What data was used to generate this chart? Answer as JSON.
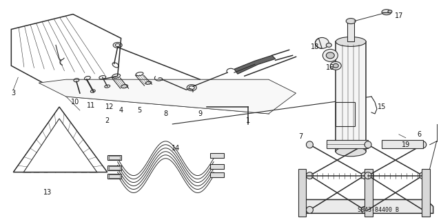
{
  "bg_color": "#ffffff",
  "part_number": "S843-84400 B",
  "figure_size": [
    6.4,
    3.19
  ],
  "dpi": 100,
  "line_color": "#2a2a2a",
  "text_color": "#111111",
  "font_size_label": 7,
  "font_size_part": 6
}
